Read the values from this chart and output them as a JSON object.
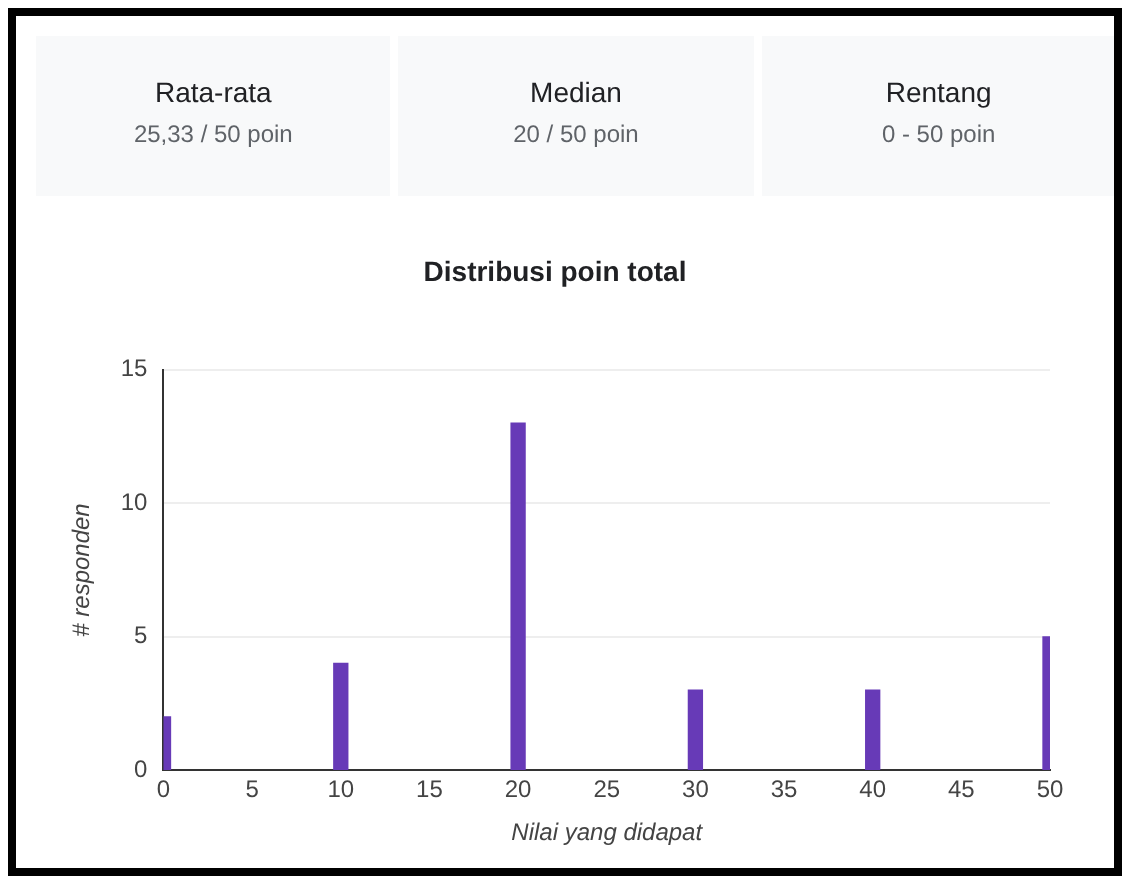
{
  "chart_data": {
    "type": "bar",
    "title": "Distribusi poin total",
    "xlabel": "Nilai yang didapat",
    "ylabel": "# responden",
    "annotations": [
      "Rata-rata",
      "25,33 / 50 poin",
      "Median",
      "20 / 50 poin",
      "Rentang",
      "0 - 50 poin"
    ],
    "x": [
      0,
      10,
      20,
      30,
      40,
      50
    ],
    "values": [
      2,
      4,
      13,
      3,
      3,
      5
    ],
    "color": "#673ab7",
    "xlim": [
      0,
      50
    ],
    "xticks": [
      0,
      5,
      10,
      15,
      20,
      25,
      30,
      35,
      40,
      45,
      50
    ],
    "ylim": [
      0,
      15
    ],
    "yticks": [
      0,
      5,
      10,
      15
    ],
    "grid": "y"
  }
}
